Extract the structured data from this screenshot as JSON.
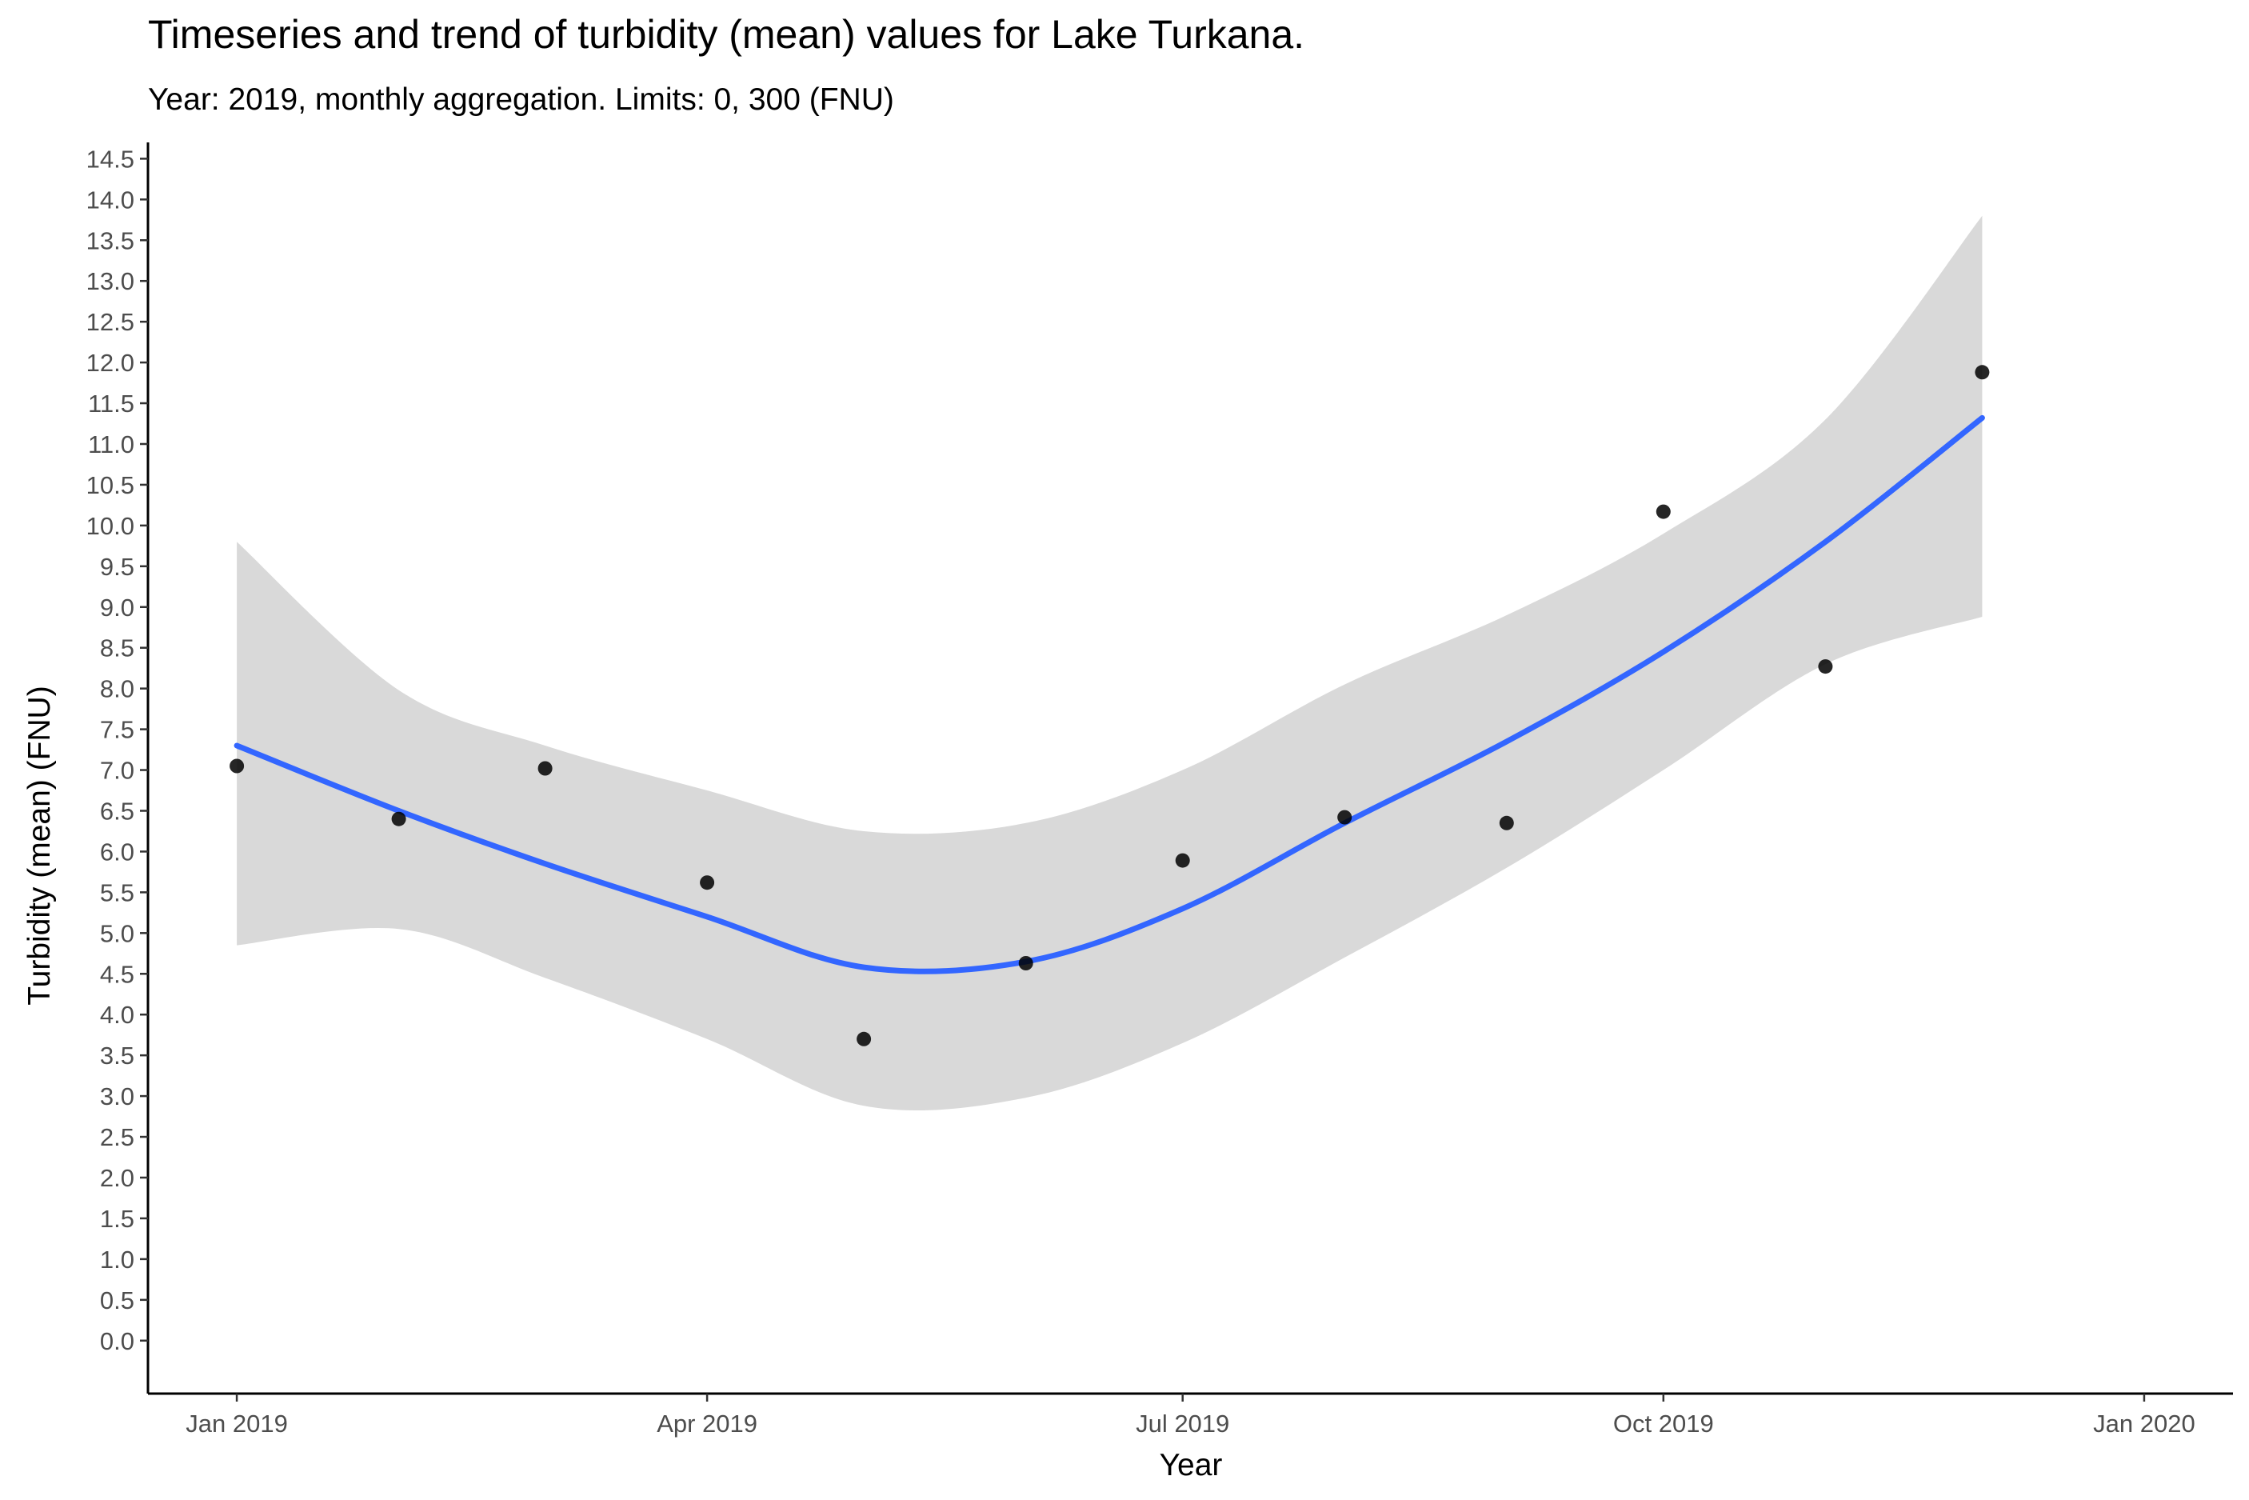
{
  "chart_data": {
    "type": "scatter",
    "title": "Timeseries and trend of turbidity (mean) values for Lake Turkana.",
    "subtitle": "Year: 2019, monthly aggregation. Limits: 0, 300 (FNU)",
    "xlabel": "Year",
    "ylabel": "Turbidity (mean) (FNU)",
    "x_ticks": [
      {
        "date": "2019-01-01",
        "label": "Jan 2019"
      },
      {
        "date": "2019-04-01",
        "label": "Apr 2019"
      },
      {
        "date": "2019-07-01",
        "label": "Jul 2019"
      },
      {
        "date": "2019-10-01",
        "label": "Oct 2019"
      },
      {
        "date": "2020-01-01",
        "label": "Jan 2020"
      }
    ],
    "y_ticks": [
      "0.0",
      "0.5",
      "1.0",
      "1.5",
      "2.0",
      "2.5",
      "3.0",
      "3.5",
      "4.0",
      "4.5",
      "5.0",
      "5.5",
      "6.0",
      "6.5",
      "7.0",
      "7.5",
      "8.0",
      "8.5",
      "9.0",
      "9.5",
      "10.0",
      "10.5",
      "11.0",
      "11.5",
      "12.0",
      "12.5",
      "13.0",
      "13.5",
      "14.0",
      "14.5"
    ],
    "xlim": [
      "2018-12-15",
      "2020-01-18"
    ],
    "ylim": [
      -0.65,
      14.7
    ],
    "grid": false,
    "legend": "none",
    "series": [
      {
        "type": "points",
        "color": "#000000",
        "x": [
          "2019-01-01",
          "2019-02-01",
          "2019-03-01",
          "2019-04-01",
          "2019-05-01",
          "2019-06-01",
          "2019-07-01",
          "2019-08-01",
          "2019-09-01",
          "2019-10-01",
          "2019-11-01",
          "2019-12-01"
        ],
        "y": [
          7.05,
          6.4,
          7.02,
          5.62,
          3.7,
          4.63,
          5.89,
          6.42,
          6.35,
          10.17,
          8.27,
          11.88
        ]
      },
      {
        "type": "trend",
        "color": "#3366FF",
        "band_color": "#D9D9D9",
        "x": [
          "2019-01-01",
          "2019-02-01",
          "2019-03-01",
          "2019-04-01",
          "2019-05-01",
          "2019-06-01",
          "2019-07-01",
          "2019-08-01",
          "2019-09-01",
          "2019-10-01",
          "2019-11-01",
          "2019-12-01"
        ],
        "y": [
          7.3,
          6.5,
          5.85,
          5.2,
          4.58,
          4.65,
          5.3,
          6.35,
          7.35,
          8.45,
          9.8,
          11.32
        ],
        "y_low": [
          4.85,
          5.05,
          4.45,
          3.7,
          2.88,
          2.98,
          3.65,
          4.7,
          5.8,
          7.0,
          8.3,
          8.88
        ],
        "y_high": [
          9.8,
          7.98,
          7.3,
          6.75,
          6.25,
          6.35,
          7.0,
          8.05,
          8.9,
          9.9,
          11.3,
          13.8
        ]
      }
    ]
  }
}
